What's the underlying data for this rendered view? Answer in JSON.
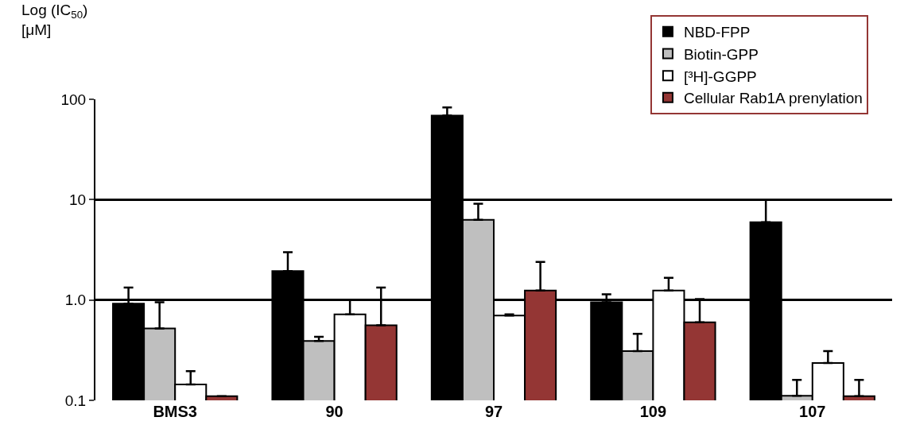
{
  "chart_data": {
    "type": "bar",
    "ylabel": "Log (IC$_{50}$)\n[μM]",
    "categories": [
      "BMS3",
      "90",
      "97",
      "109",
      "107"
    ],
    "series": [
      {
        "name": "NBD-FPP",
        "color": "#000000",
        "values": [
          0.92,
          1.94,
          68.8,
          0.95,
          5.96
        ],
        "errors": [
          [
            0.92,
            1.33
          ],
          [
            1.94,
            3.0
          ],
          [
            68.8,
            83
          ],
          [
            0.95,
            1.14
          ],
          [
            5.96,
            9.95
          ]
        ]
      },
      {
        "name": "Biotin-GPP",
        "color": "#bfbfbf",
        "values": [
          0.52,
          0.39,
          6.3,
          0.31,
          0.111
        ],
        "errors": [
          [
            0.52,
            0.95
          ],
          [
            0.39,
            0.43
          ],
          [
            6.3,
            9.1
          ],
          [
            0.31,
            0.46
          ],
          [
            0.111,
            0.16
          ]
        ]
      },
      {
        "name": "[³H]-GGPP",
        "color": "#ffffff",
        "values": [
          0.144,
          0.72,
          0.7,
          1.24,
          0.236
        ],
        "errors": [
          [
            0.144,
            0.195
          ],
          [
            0.72,
            1.0
          ],
          [
            0.7,
            0.72
          ],
          [
            1.24,
            1.66
          ],
          [
            0.236,
            0.31
          ]
        ]
      },
      {
        "name": "Cellular Rab1A prenylation",
        "color": "#943634",
        "values": [
          0.11,
          0.56,
          1.24,
          0.6,
          0.11
        ],
        "errors": [
          [
            0.11,
            0.11
          ],
          [
            0.56,
            1.33
          ],
          [
            1.24,
            2.4
          ],
          [
            0.6,
            1.02
          ],
          [
            0.11,
            0.16
          ]
        ]
      }
    ],
    "log": "y",
    "ylim": [
      0.1,
      100
    ],
    "yticks": [
      0.1,
      {
        "value": 1,
        "label": "1.0"
      },
      10,
      100
    ],
    "grid": "y",
    "legend": "top right"
  }
}
